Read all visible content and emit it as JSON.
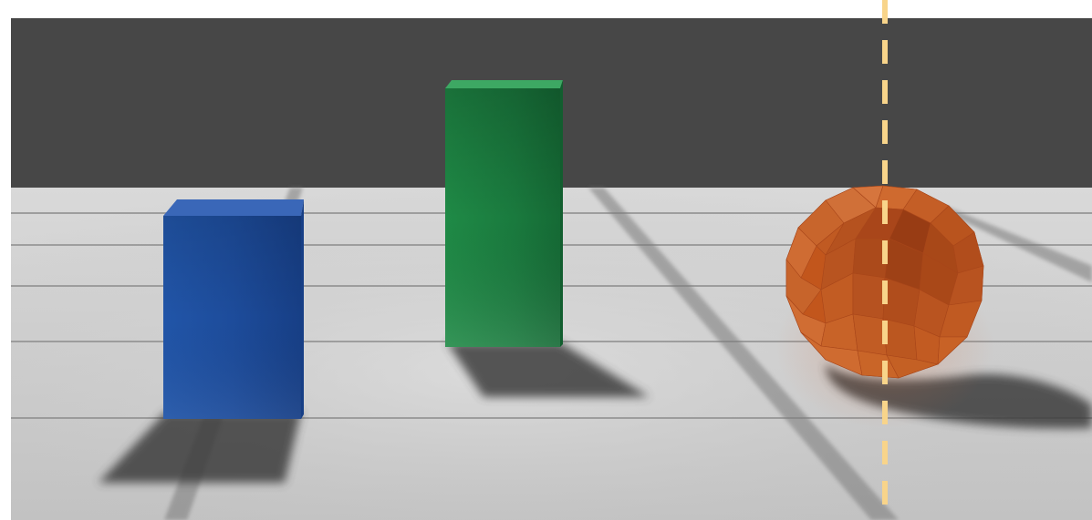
{
  "scene": {
    "background": "#ffffff",
    "backdrop": "#474747",
    "floor_top": "#d7d7d7",
    "floor_bottom": "#c4c4c4",
    "floor_line": "#8f8f8f",
    "shadow": "#3f3f3f",
    "guide_line_color": "#f8d48a",
    "objects": [
      {
        "name": "blue-box",
        "shape": "box",
        "color": "#1f4fa0"
      },
      {
        "name": "green-box",
        "shape": "box",
        "color": "#1a7a3d"
      },
      {
        "name": "orange-sphere",
        "shape": "low-poly-sphere",
        "color": "#c2561c"
      }
    ],
    "guide_line": {
      "style": "dashed",
      "orientation": "vertical"
    }
  }
}
